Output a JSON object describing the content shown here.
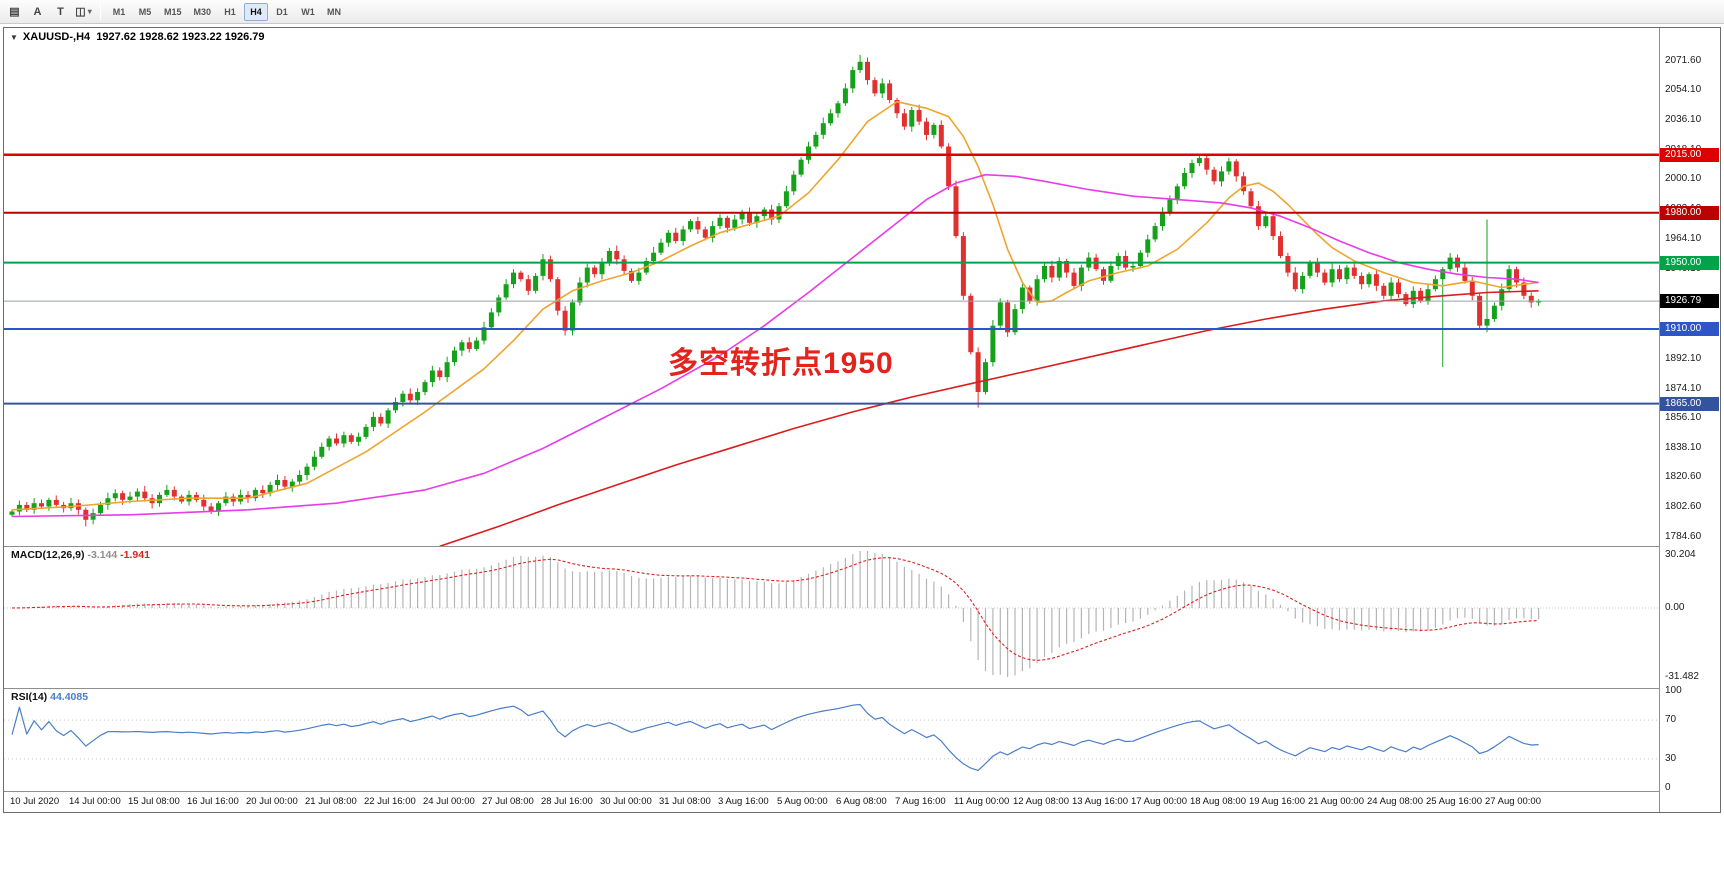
{
  "toolbar": {
    "tools": [
      {
        "id": "charts",
        "glyph": "▤"
      },
      {
        "id": "cursor",
        "glyph": "A"
      },
      {
        "id": "text",
        "glyph": "T"
      },
      {
        "id": "objects",
        "glyph": "◫",
        "chevron": "▾"
      }
    ],
    "timeframes": [
      "M1",
      "M5",
      "M15",
      "M30",
      "H1",
      "H4",
      "D1",
      "W1",
      "MN"
    ],
    "active_timeframe": "H4"
  },
  "chart": {
    "quote": {
      "arrow_glyph": "▼",
      "symbol": "XAUUSD-,H4",
      "ohlc": "1927.62 1928.62 1923.22 1926.79"
    },
    "annotation": {
      "text": "多空转折点1950",
      "color": "#e2241d"
    },
    "levels": [
      {
        "label": "2015.00",
        "price": 2015.0,
        "color": "#dd0000",
        "width": 2.5
      },
      {
        "label": "1980.00",
        "price": 1980.0,
        "color": "#bb0000",
        "width": 2
      },
      {
        "label": "1950.00",
        "price": 1950.0,
        "color": "#00a24a",
        "width": 2
      },
      {
        "label": "1910.00",
        "price": 1910.0,
        "color": "#2e55c8",
        "width": 2
      },
      {
        "label": "1865.00",
        "price": 1865.0,
        "color": "#34539e",
        "width": 2
      }
    ],
    "current_price": {
      "label": "1926.79",
      "value": 1926.79,
      "badge_bg": "#000000",
      "line_color": "#9aa0a6"
    },
    "colors": {
      "bull": "#16a11a",
      "bear": "#e13030",
      "ma_fast": "#eea52f",
      "ma_mid": "#e83ce8",
      "ma_slow": "#dc1c1c"
    }
  },
  "macd_panel": {
    "name": "MACD(12,26,9)",
    "value_main": "-3.144",
    "value_signal": "-1.941",
    "ticks": [
      "30.204",
      "0.00",
      "-31.482"
    ],
    "histogram_color": "#b5b5b5",
    "signal_color": "#e02020"
  },
  "rsi_panel": {
    "name": "RSI(14)",
    "value": "44.4085",
    "ticks": [
      "100",
      "70",
      "30",
      "0"
    ],
    "levels": [
      70,
      30
    ],
    "line_color": "#4a7dc9",
    "level_color": "#c9c9c9"
  },
  "chart_data": {
    "type": "candlestick",
    "symbol": "XAUUSD",
    "timeframe": "H4",
    "ohlc_quote": {
      "open": 1927.62,
      "high": 1928.62,
      "low": 1923.22,
      "close": 1926.79
    },
    "price_ticks": [
      "2071.60",
      "2054.10",
      "2036.10",
      "2018.10",
      "2000.10",
      "1982.10",
      "1964.10",
      "1946.10",
      "1928.10",
      "1910.10",
      "1892.10",
      "1874.10",
      "1856.10",
      "1838.10",
      "1820.60",
      "1802.60",
      "1784.60"
    ],
    "time_axis": [
      "10 Jul 2020",
      "14 Jul 00:00",
      "15 Jul 08:00",
      "16 Jul 16:00",
      "20 Jul 00:00",
      "21 Jul 08:00",
      "22 Jul 16:00",
      "24 Jul 00:00",
      "27 Jul 08:00",
      "28 Jul 16:00",
      "30 Jul 00:00",
      "31 Jul 08:00",
      "3 Aug 16:00",
      "5 Aug 00:00",
      "6 Aug 08:00",
      "7 Aug 16:00",
      "11 Aug 00:00",
      "12 Aug 08:00",
      "13 Aug 16:00",
      "17 Aug 00:00",
      "18 Aug 08:00",
      "19 Aug 16:00",
      "21 Aug 00:00",
      "24 Aug 08:00",
      "25 Aug 16:00",
      "27 Aug 00:00"
    ],
    "closes": [
      1800,
      1804,
      1801,
      1805,
      1803,
      1807,
      1804,
      1802,
      1805,
      1801,
      1795,
      1799,
      1804,
      1808,
      1811,
      1807,
      1809,
      1812,
      1808,
      1805,
      1810,
      1813,
      1809,
      1806,
      1810,
      1807,
      1803,
      1800,
      1805,
      1809,
      1806,
      1810,
      1808,
      1813,
      1811,
      1816,
      1819,
      1815,
      1818,
      1822,
      1827,
      1833,
      1839,
      1844,
      1841,
      1846,
      1842,
      1845,
      1851,
      1857,
      1853,
      1861,
      1866,
      1871,
      1867,
      1872,
      1878,
      1885,
      1881,
      1890,
      1897,
      1902,
      1898,
      1903,
      1911,
      1920,
      1929,
      1937,
      1944,
      1940,
      1933,
      1942,
      1952,
      1940,
      1921,
      1909,
      1926,
      1938,
      1947,
      1943,
      1950,
      1957,
      1952,
      1945,
      1939,
      1944,
      1951,
      1956,
      1962,
      1968,
      1963,
      1970,
      1975,
      1970,
      1965,
      1972,
      1977,
      1971,
      1976,
      1980,
      1974,
      1978,
      1982,
      1976,
      1984,
      1993,
      2003,
      2012,
      2020,
      2027,
      2034,
      2040,
      2046,
      2055,
      2066,
      2071,
      2060,
      2052,
      2058,
      2048,
      2040,
      2032,
      2042,
      2035,
      2027,
      2033,
      2020,
      1996,
      1966,
      1930,
      1896,
      1872,
      1890,
      1912,
      1926,
      1908,
      1922,
      1935,
      1927,
      1940,
      1948,
      1941,
      1951,
      1944,
      1936,
      1947,
      1953,
      1946,
      1939,
      1948,
      1954,
      1947,
      1948,
      1956,
      1964,
      1972,
      1980,
      1988,
      1996,
      2004,
      2010,
      2013,
      2006,
      1999,
      2005,
      2011,
      2002,
      1993,
      1984,
      1972,
      1978,
      1966,
      1954,
      1944,
      1934,
      1942,
      1950,
      1944,
      1938,
      1946,
      1940,
      1947,
      1942,
      1937,
      1943,
      1936,
      1930,
      1938,
      1931,
      1925,
      1933,
      1927,
      1934,
      1940,
      1946,
      1953,
      1947,
      1939,
      1930,
      1912,
      1916,
      1924,
      1934,
      1946,
      1938,
      1930,
      1926,
      1926.8
    ],
    "spikes": [
      {
        "i": 10,
        "low": 1791
      },
      {
        "i": 75,
        "low": 1906
      },
      {
        "i": 115,
        "high": 2075.2
      },
      {
        "i": 131,
        "low": 1862.6
      },
      {
        "i": 161,
        "high": 2015.6
      },
      {
        "i": 194,
        "low": 1887
      },
      {
        "i": 200,
        "high": 1976,
        "low": 1908
      }
    ],
    "ma_orange": [
      [
        0,
        1801
      ],
      [
        8,
        1803
      ],
      [
        16,
        1806
      ],
      [
        24,
        1808
      ],
      [
        32,
        1808
      ],
      [
        40,
        1817
      ],
      [
        48,
        1836
      ],
      [
        56,
        1860
      ],
      [
        64,
        1886
      ],
      [
        68,
        1903
      ],
      [
        72,
        1922
      ],
      [
        76,
        1933
      ],
      [
        80,
        1939
      ],
      [
        84,
        1944
      ],
      [
        88,
        1951
      ],
      [
        92,
        1960
      ],
      [
        96,
        1968
      ],
      [
        100,
        1973
      ],
      [
        104,
        1978
      ],
      [
        108,
        1992
      ],
      [
        112,
        2012
      ],
      [
        116,
        2035
      ],
      [
        120,
        2047
      ],
      [
        124,
        2043
      ],
      [
        127,
        2038
      ],
      [
        129,
        2026
      ],
      [
        131,
        2008
      ],
      [
        133,
        1985
      ],
      [
        135,
        1958
      ],
      [
        137,
        1938
      ],
      [
        139,
        1926
      ],
      [
        141,
        1927
      ],
      [
        143,
        1932
      ],
      [
        146,
        1939
      ],
      [
        150,
        1944
      ],
      [
        154,
        1948
      ],
      [
        158,
        1958
      ],
      [
        162,
        1974
      ],
      [
        165,
        1989
      ],
      [
        167,
        1996
      ],
      [
        169,
        1998
      ],
      [
        171,
        1993
      ],
      [
        173,
        1985
      ],
      [
        175,
        1976
      ],
      [
        177,
        1967
      ],
      [
        179,
        1959
      ],
      [
        182,
        1951
      ],
      [
        186,
        1944
      ],
      [
        190,
        1938
      ],
      [
        194,
        1936
      ],
      [
        198,
        1939
      ],
      [
        202,
        1935
      ],
      [
        205,
        1937
      ],
      [
        207,
        1938
      ]
    ],
    "ma_magenta": [
      [
        0,
        1797
      ],
      [
        16,
        1798
      ],
      [
        32,
        1801
      ],
      [
        44,
        1805
      ],
      [
        56,
        1813
      ],
      [
        64,
        1823
      ],
      [
        72,
        1838
      ],
      [
        80,
        1856
      ],
      [
        88,
        1874
      ],
      [
        96,
        1894
      ],
      [
        102,
        1912
      ],
      [
        108,
        1932
      ],
      [
        112,
        1946
      ],
      [
        116,
        1960
      ],
      [
        120,
        1974
      ],
      [
        124,
        1988
      ],
      [
        128,
        1998
      ],
      [
        132,
        2003
      ],
      [
        136,
        2002
      ],
      [
        140,
        1999
      ],
      [
        146,
        1994
      ],
      [
        152,
        1990
      ],
      [
        158,
        1988
      ],
      [
        164,
        1986
      ],
      [
        168,
        1983
      ],
      [
        172,
        1978
      ],
      [
        176,
        1971
      ],
      [
        180,
        1963
      ],
      [
        184,
        1956
      ],
      [
        188,
        1950
      ],
      [
        192,
        1946
      ],
      [
        196,
        1943
      ],
      [
        200,
        1941
      ],
      [
        204,
        1940
      ],
      [
        207,
        1938
      ]
    ],
    "ma_red": [
      [
        58,
        1779
      ],
      [
        66,
        1791
      ],
      [
        74,
        1804
      ],
      [
        82,
        1816
      ],
      [
        90,
        1828
      ],
      [
        98,
        1839
      ],
      [
        106,
        1850
      ],
      [
        114,
        1860
      ],
      [
        122,
        1869
      ],
      [
        130,
        1877
      ],
      [
        138,
        1885
      ],
      [
        146,
        1893
      ],
      [
        154,
        1901
      ],
      [
        162,
        1909
      ],
      [
        170,
        1916
      ],
      [
        178,
        1922
      ],
      [
        186,
        1927
      ],
      [
        194,
        1930
      ],
      [
        200,
        1932
      ],
      [
        207,
        1933
      ]
    ]
  }
}
